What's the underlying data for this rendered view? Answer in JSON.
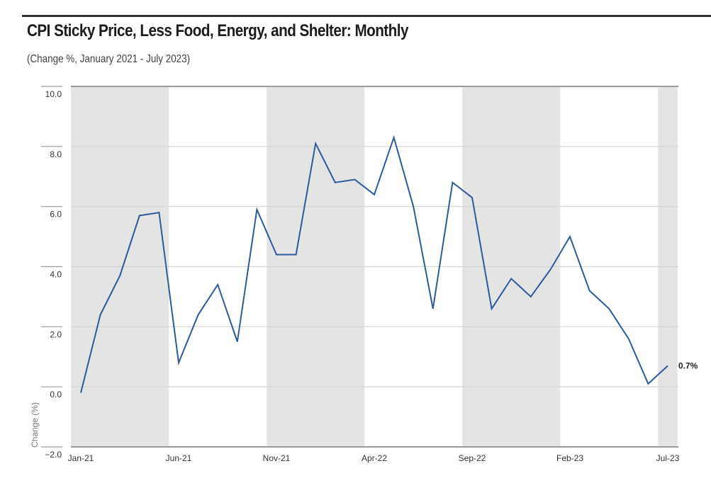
{
  "header": {
    "title": "CPI Sticky Price, Less Food, Energy, and Shelter: Monthly",
    "subtitle": "(Change %, January 2021 - July 2023)"
  },
  "chart_data": {
    "type": "line",
    "title": "CPI Sticky Price, Less Food, Energy, and Shelter: Monthly",
    "subtitle": "(Change %, January 2021 - July 2023)",
    "xlabel": "",
    "ylabel": "Change (%)",
    "ylim": [
      -2.0,
      10.0
    ],
    "yticks": [
      "10.0",
      "8.0",
      "6.0",
      "4.0",
      "2.0",
      "0.0",
      "−2.0"
    ],
    "ytick_values": [
      10,
      8,
      6,
      4,
      2,
      0,
      -2
    ],
    "xtick_labels": [
      "Jan-21",
      "Jun-21",
      "Nov-21",
      "Apr-22",
      "Sep-22",
      "Feb-23",
      "Jul-23"
    ],
    "xtick_indices": [
      0,
      5,
      10,
      15,
      20,
      25,
      30
    ],
    "grid": true,
    "shaded_bands_month_index": [
      [
        -0.5,
        4.5
      ],
      [
        9.5,
        14.5
      ],
      [
        19.5,
        24.5
      ],
      [
        29.5,
        30.5
      ]
    ],
    "end_label": "0.7%",
    "line_color": "#2e5a9c",
    "band_color": "#e4e4e4",
    "x": [
      "Jan-21",
      "Feb-21",
      "Mar-21",
      "Apr-21",
      "May-21",
      "Jun-21",
      "Jul-21",
      "Aug-21",
      "Sep-21",
      "Oct-21",
      "Nov-21",
      "Dec-21",
      "Jan-22",
      "Feb-22",
      "Mar-22",
      "Apr-22",
      "May-22",
      "Jun-22",
      "Jul-22",
      "Aug-22",
      "Sep-22",
      "Oct-22",
      "Nov-22",
      "Dec-22",
      "Jan-23",
      "Feb-23",
      "Mar-23",
      "Apr-23",
      "May-23",
      "Jun-23",
      "Jul-23"
    ],
    "series": [
      {
        "name": "CPI Sticky Price, Less Food, Energy, and Shelter",
        "values": [
          -0.2,
          2.4,
          3.7,
          5.7,
          5.8,
          0.8,
          2.4,
          3.4,
          1.5,
          5.9,
          4.4,
          4.4,
          8.1,
          6.8,
          6.9,
          6.4,
          8.3,
          6.0,
          2.6,
          6.8,
          6.3,
          2.6,
          3.6,
          3.0,
          3.9,
          5.0,
          3.2,
          2.6,
          1.6,
          0.1,
          0.7
        ]
      }
    ]
  }
}
